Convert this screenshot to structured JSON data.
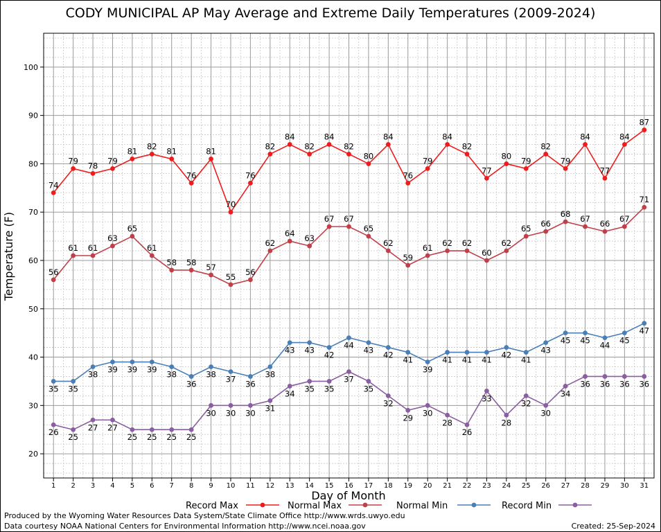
{
  "credits": {
    "line1": "Produced by the Wyoming Water Resources Data System/State Climate Office http://www.wrds.uwyo.edu",
    "line2": "Data courtesy NOAA National Centers for Environmental Information http://www.ncei.noaa.gov",
    "created": "Created:  25-Sep-2024"
  },
  "chart_data": {
    "type": "line",
    "title": "CODY MUNICIPAL AP May Average and Extreme Daily Temperatures (2009-2024)",
    "xlabel": "Day of Month",
    "ylabel": "Temperature (F)",
    "xlim": [
      0.5,
      31.5
    ],
    "ylim": [
      15,
      107
    ],
    "yticks": [
      20,
      30,
      40,
      50,
      60,
      70,
      80,
      90,
      100
    ],
    "x": [
      1,
      2,
      3,
      4,
      5,
      6,
      7,
      8,
      9,
      10,
      11,
      12,
      13,
      14,
      15,
      16,
      17,
      18,
      19,
      20,
      21,
      22,
      23,
      24,
      25,
      26,
      27,
      28,
      29,
      30,
      31
    ],
    "grid": true,
    "legend_position": "bottom",
    "series": [
      {
        "name": "Record Max",
        "color": "#ee1c1c",
        "values": [
          74,
          79,
          78,
          79,
          81,
          82,
          81,
          76,
          81,
          70,
          76,
          82,
          84,
          82,
          84,
          82,
          80,
          84,
          76,
          79,
          84,
          82,
          77,
          80,
          79,
          82,
          79,
          84,
          77,
          84,
          87
        ],
        "label_pos": "above"
      },
      {
        "name": "Normal Max",
        "color": "#c0404a",
        "values": [
          56,
          61,
          61,
          63,
          65,
          61,
          58,
          58,
          57,
          55,
          56,
          62,
          64,
          63,
          67,
          67,
          65,
          62,
          59,
          61,
          62,
          62,
          60,
          62,
          65,
          66,
          68,
          67,
          66,
          67,
          71
        ],
        "label_pos": "above"
      },
      {
        "name": "Normal Min",
        "color": "#4a7fb5",
        "values": [
          35,
          35,
          38,
          39,
          39,
          39,
          38,
          36,
          38,
          37,
          36,
          38,
          43,
          43,
          42,
          44,
          43,
          42,
          41,
          39,
          41,
          41,
          41,
          42,
          41,
          43,
          45,
          45,
          44,
          45,
          47
        ],
        "label_pos": "below"
      },
      {
        "name": "Record Min",
        "color": "#8a5ea0",
        "values": [
          26,
          25,
          27,
          27,
          25,
          25,
          25,
          25,
          30,
          30,
          30,
          31,
          34,
          35,
          35,
          37,
          35,
          32,
          29,
          30,
          28,
          26,
          33,
          28,
          32,
          30,
          34,
          36,
          36,
          36,
          36
        ],
        "label_pos": "below"
      }
    ]
  }
}
